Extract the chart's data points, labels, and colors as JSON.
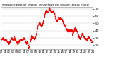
{
  "title": "Milwaukee Weather Outdoor Temperature per Minute (Last 24 Hours)",
  "line_color": "#ff0000",
  "background_color": "#ffffff",
  "plot_bg_color": "#ffffff",
  "grid_color": "#cccccc",
  "ylim": [
    15,
    72
  ],
  "yticks": [
    20,
    30,
    40,
    50,
    60,
    70
  ],
  "vlines": [
    0.285,
    0.52
  ],
  "vline_color": "#999999",
  "temp_seed": 42,
  "n_points": 1440
}
